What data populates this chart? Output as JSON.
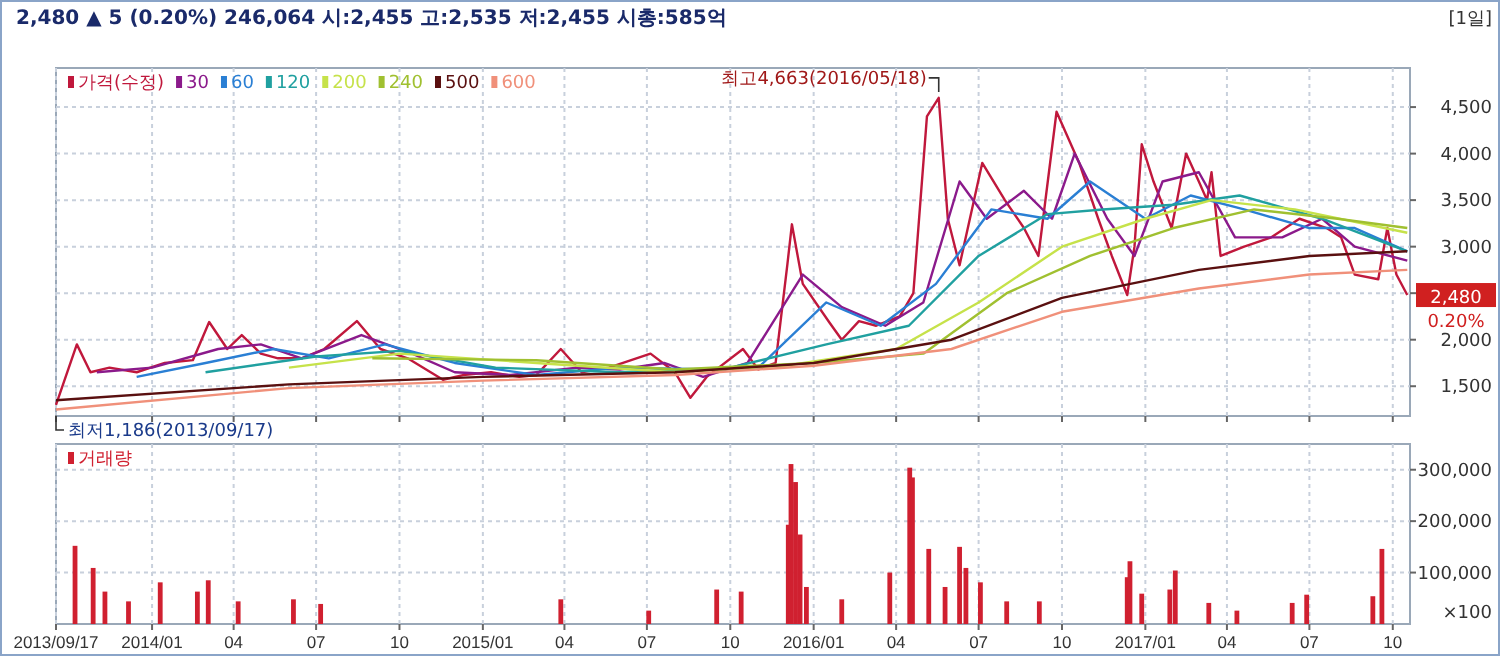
{
  "chart_data": [
    {
      "type": "line",
      "subtitle": "2,480 ▲ 5 (0.20%)   246,064   시:2,455  고:2,535  저:2,455  시총:585억",
      "legend": "top left",
      "grid": true,
      "tick_labels": "y",
      "xlim": [
        "2013-09-17",
        "2017-10-20"
      ],
      "xticks": [
        {
          "value": "2013-09-17",
          "label": null
        },
        {
          "value": "2014-01-01",
          "label": null
        },
        {
          "value": "2014-04-01",
          "label": null
        },
        {
          "value": "2014-07-01",
          "label": null
        },
        {
          "value": "2014-10-01",
          "label": null
        },
        {
          "value": "2015-01-01",
          "label": null
        },
        {
          "value": "2015-04-01",
          "label": null
        },
        {
          "value": "2015-07-01",
          "label": null
        },
        {
          "value": "2015-10-01",
          "label": null
        },
        {
          "value": "2016-01-01",
          "label": null
        },
        {
          "value": "2016-04-01",
          "label": null
        },
        {
          "value": "2016-07-01",
          "label": null
        },
        {
          "value": "2016-10-01",
          "label": null
        },
        {
          "value": "2017-01-01",
          "label": null
        },
        {
          "value": "2017-04-01",
          "label": null
        },
        {
          "value": "2017-07-01",
          "label": null
        },
        {
          "value": "2017-10-01",
          "label": null
        }
      ],
      "ylim": [
        1180,
        4920
      ],
      "yticks": [
        {
          "value": 1500,
          "label": "1,500"
        },
        {
          "value": 2000,
          "label": "2,000"
        },
        {
          "value": 2500,
          "label": null
        },
        {
          "value": 3000,
          "label": "3,000"
        },
        {
          "value": 3500,
          "label": "3,500"
        },
        {
          "value": 4000,
          "label": "4,000"
        },
        {
          "value": 4500,
          "label": "4,500"
        }
      ],
      "annotations": [
        {
          "text": "최고4,663(2016/05/18)",
          "x": "2016-05-18",
          "y": 4663
        },
        {
          "text": "최저1,186(2013/09/17)",
          "x": "2013-09-17",
          "y": 1186
        },
        "2,480",
        "0.20%",
        "[1일]"
      ],
      "series": [
        {
          "name": "가격(수정)",
          "color": "#c0183c",
          "x": [
            "2013-09-17",
            "2013-10-10",
            "2013-10-25",
            "2013-11-15",
            "2013-12-15",
            "2014-01-15",
            "2014-02-15",
            "2014-03-05",
            "2014-03-25",
            "2014-04-10",
            "2014-05-01",
            "2014-05-20",
            "2014-06-15",
            "2014-07-10",
            "2014-08-15",
            "2014-09-10",
            "2014-10-10",
            "2014-11-18",
            "2014-12-10",
            "2015-01-10",
            "2015-02-10",
            "2015-03-01",
            "2015-03-28",
            "2015-04-20",
            "2015-05-20",
            "2015-07-05",
            "2015-08-01",
            "2015-08-18",
            "2015-09-05",
            "2015-10-15",
            "2015-11-01",
            "2015-11-20",
            "2015-12-03",
            "2015-12-08",
            "2015-12-20",
            "2016-01-18",
            "2016-02-01",
            "2016-02-20",
            "2016-03-10",
            "2016-04-05",
            "2016-04-20",
            "2016-05-05",
            "2016-05-18",
            "2016-05-28",
            "2016-06-10",
            "2016-07-05",
            "2016-07-30",
            "2016-08-20",
            "2016-09-05",
            "2016-09-25",
            "2016-10-20",
            "2016-11-10",
            "2016-11-25",
            "2016-12-12",
            "2016-12-20",
            "2016-12-28",
            "2017-01-10",
            "2017-01-30",
            "2017-02-15",
            "2017-03-01",
            "2017-03-10",
            "2017-03-15",
            "2017-03-25",
            "2017-04-20",
            "2017-05-20",
            "2017-06-20",
            "2017-07-20",
            "2017-08-05",
            "2017-08-20",
            "2017-09-15",
            "2017-09-25",
            "2017-10-05",
            "2017-10-17"
          ],
          "values": [
            1300,
            1950,
            1650,
            1700,
            1650,
            1750,
            1780,
            2190,
            1900,
            2050,
            1850,
            1800,
            1800,
            1900,
            2200,
            1900,
            1800,
            1570,
            1620,
            1650,
            1600,
            1620,
            1900,
            1650,
            1700,
            1850,
            1650,
            1376,
            1600,
            1900,
            1680,
            1750,
            2810,
            3240,
            2600,
            2190,
            2000,
            2200,
            2150,
            2250,
            2500,
            4400,
            4600,
            3300,
            2800,
            3900,
            3500,
            3200,
            2900,
            4450,
            3900,
            3300,
            2900,
            2480,
            3000,
            4100,
            3700,
            3200,
            4000,
            3700,
            3500,
            3800,
            2900,
            3000,
            3100,
            3300,
            3200,
            3100,
            2700,
            2650,
            3200,
            2700,
            2480
          ]
        },
        {
          "name": "30",
          "color": "#8b1a8b",
          "x": [
            "2013-11-01",
            "2014-01-01",
            "2014-03-15",
            "2014-05-01",
            "2014-06-15",
            "2014-08-20",
            "2014-10-15",
            "2014-12-01",
            "2015-02-01",
            "2015-04-15",
            "2015-06-01",
            "2015-07-20",
            "2015-09-01",
            "2015-10-20",
            "2015-12-20",
            "2016-02-01",
            "2016-03-20",
            "2016-05-01",
            "2016-06-10",
            "2016-07-10",
            "2016-08-20",
            "2016-09-20",
            "2016-10-15",
            "2016-11-20",
            "2016-12-20",
            "2017-01-20",
            "2017-03-01",
            "2017-04-10",
            "2017-06-01",
            "2017-07-15",
            "2017-08-20",
            "2017-10-17"
          ],
          "values": [
            1650,
            1700,
            1900,
            1950,
            1800,
            2050,
            1850,
            1650,
            1620,
            1700,
            1680,
            1750,
            1600,
            1750,
            2700,
            2350,
            2150,
            2400,
            3700,
            3300,
            3600,
            3300,
            4000,
            3300,
            2900,
            3700,
            3800,
            3100,
            3100,
            3300,
            3000,
            2850
          ]
        },
        {
          "name": "60",
          "color": "#2a7fd4",
          "x": [
            "2013-12-15",
            "2014-03-01",
            "2014-05-15",
            "2014-07-15",
            "2014-09-15",
            "2014-12-01",
            "2015-03-01",
            "2015-06-01",
            "2015-09-15",
            "2015-11-01",
            "2016-01-15",
            "2016-03-15",
            "2016-05-15",
            "2016-07-15",
            "2016-09-15",
            "2016-11-01",
            "2017-01-01",
            "2017-02-20",
            "2017-04-20",
            "2017-07-01",
            "2017-08-20",
            "2017-10-17"
          ],
          "values": [
            1600,
            1750,
            1900,
            1800,
            1950,
            1750,
            1620,
            1700,
            1680,
            1700,
            2400,
            2150,
            2600,
            3400,
            3300,
            3700,
            3300,
            3550,
            3400,
            3200,
            3200,
            2950
          ]
        },
        {
          "name": "120",
          "color": "#20a0a0",
          "x": [
            "2014-03-01",
            "2014-07-01",
            "2014-10-01",
            "2015-01-15",
            "2015-06-01",
            "2015-10-01",
            "2016-01-15",
            "2016-04-15",
            "2016-07-01",
            "2016-09-15",
            "2016-11-15",
            "2017-02-01",
            "2017-04-15",
            "2017-07-15",
            "2017-10-17"
          ],
          "values": [
            1650,
            1820,
            1880,
            1700,
            1650,
            1700,
            1950,
            2150,
            2900,
            3350,
            3400,
            3450,
            3550,
            3300,
            2950
          ]
        },
        {
          "name": "200",
          "color": "#c6e24a",
          "x": [
            "2014-06-01",
            "2014-10-01",
            "2015-03-01",
            "2015-08-01",
            "2015-12-01",
            "2016-04-01",
            "2016-07-01",
            "2016-10-01",
            "2017-01-01",
            "2017-03-15",
            "2017-06-15",
            "2017-10-17"
          ],
          "values": [
            1700,
            1850,
            1750,
            1650,
            1720,
            1900,
            2400,
            3000,
            3300,
            3500,
            3400,
            3150
          ]
        },
        {
          "name": "240",
          "color": "#a0c030",
          "x": [
            "2014-09-01",
            "2015-03-01",
            "2015-08-01",
            "2016-01-01",
            "2016-05-01",
            "2016-08-01",
            "2016-11-01",
            "2017-02-01",
            "2017-05-01",
            "2017-08-01",
            "2017-10-17"
          ],
          "values": [
            1800,
            1780,
            1680,
            1750,
            1850,
            2500,
            2900,
            3200,
            3400,
            3300,
            3200
          ]
        },
        {
          "name": "500",
          "color": "#5a1010",
          "x": [
            "2013-09-17",
            "2014-06-01",
            "2015-01-01",
            "2015-08-01",
            "2016-01-01",
            "2016-06-01",
            "2016-10-01",
            "2017-03-01",
            "2017-07-01",
            "2017-10-17"
          ],
          "values": [
            1350,
            1520,
            1600,
            1650,
            1750,
            2000,
            2450,
            2750,
            2900,
            2950
          ]
        },
        {
          "name": "600",
          "color": "#f0907a",
          "x": [
            "2013-09-17",
            "2014-06-01",
            "2015-01-01",
            "2015-08-01",
            "2016-01-01",
            "2016-06-01",
            "2016-10-01",
            "2017-03-01",
            "2017-07-01",
            "2017-10-17"
          ],
          "values": [
            1250,
            1480,
            1560,
            1620,
            1720,
            1900,
            2300,
            2550,
            2700,
            2750
          ]
        }
      ]
    },
    {
      "type": "bar",
      "legend": "top left",
      "grid": true,
      "ylabel": "×100",
      "xlim": [
        "2013-09-17",
        "2017-10-20"
      ],
      "xticks": [
        {
          "value": "2013-09-17",
          "label": "2013/09/17"
        },
        {
          "value": "2014-01-01",
          "label": "2014/01"
        },
        {
          "value": "2014-04-01",
          "label": "04"
        },
        {
          "value": "2014-07-01",
          "label": "07"
        },
        {
          "value": "2014-10-01",
          "label": "10"
        },
        {
          "value": "2015-01-01",
          "label": "2015/01"
        },
        {
          "value": "2015-04-01",
          "label": "04"
        },
        {
          "value": "2015-07-01",
          "label": "07"
        },
        {
          "value": "2015-10-01",
          "label": "10"
        },
        {
          "value": "2016-01-01",
          "label": "2016/01"
        },
        {
          "value": "2016-04-01",
          "label": "04"
        },
        {
          "value": "2016-07-01",
          "label": "07"
        },
        {
          "value": "2016-10-01",
          "label": "10"
        },
        {
          "value": "2017-01-01",
          "label": "2017/01"
        },
        {
          "value": "2017-04-01",
          "label": "04"
        },
        {
          "value": "2017-07-01",
          "label": "07"
        },
        {
          "value": "2017-10-01",
          "label": "10"
        }
      ],
      "ylim": [
        0,
        350000
      ],
      "yticks": [
        {
          "value": 100000,
          "label": "100,000"
        },
        {
          "value": 200000,
          "label": "200,000"
        },
        {
          "value": 300000,
          "label": "300,000"
        }
      ],
      "series": [
        {
          "name": "거래량",
          "color": "#d02030",
          "x": [
            "2013-10-08",
            "2013-10-28",
            "2013-11-10",
            "2013-12-06",
            "2014-01-10",
            "2014-02-20",
            "2014-03-04",
            "2014-04-06",
            "2014-06-06",
            "2014-07-06",
            "2015-03-28",
            "2015-07-03",
            "2015-09-16",
            "2015-10-13",
            "2015-12-04",
            "2015-12-07",
            "2015-12-12",
            "2015-12-17",
            "2015-12-24",
            "2016-02-01",
            "2016-03-25",
            "2016-04-16",
            "2016-04-19",
            "2016-05-07",
            "2016-05-25",
            "2016-06-10",
            "2016-06-17",
            "2016-07-03",
            "2016-08-01",
            "2016-09-06",
            "2016-12-12",
            "2016-12-15",
            "2016-12-28",
            "2017-01-28",
            "2017-02-03",
            "2017-03-12",
            "2017-04-12",
            "2017-06-12",
            "2017-06-28",
            "2017-09-09",
            "2017-09-19"
          ],
          "values": [
            152000,
            109000,
            63000,
            44000,
            81000,
            63000,
            85000,
            44000,
            48000,
            39000,
            48000,
            26000,
            67000,
            63000,
            193000,
            311000,
            276000,
            174000,
            72000,
            48000,
            100000,
            304000,
            285000,
            146000,
            72000,
            150000,
            109000,
            81000,
            44000,
            44000,
            91000,
            122000,
            59000,
            67000,
            104000,
            41000,
            26000,
            41000,
            57000,
            54000,
            146000
          ]
        }
      ]
    }
  ]
}
